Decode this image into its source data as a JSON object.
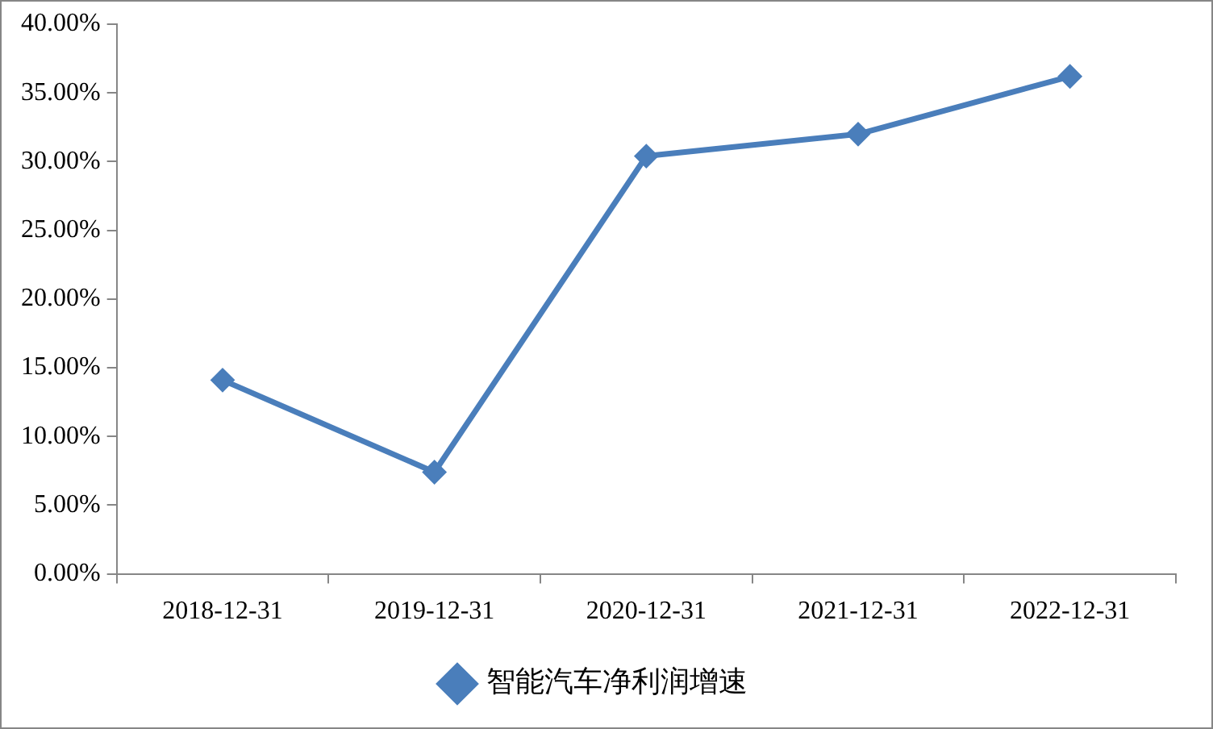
{
  "chart_data": {
    "type": "line",
    "categories": [
      "2018-12-31",
      "2019-12-31",
      "2020-12-31",
      "2021-12-31",
      "2022-12-31"
    ],
    "series": [
      {
        "name": "智能汽车净利润增速",
        "color": "#4a7ebb",
        "values": [
          14.1,
          7.4,
          30.4,
          32.0,
          36.2
        ]
      }
    ],
    "ylim": [
      0,
      40
    ],
    "yticks": [
      {
        "value": 0,
        "label": "0.00%"
      },
      {
        "value": 5,
        "label": "5.00%"
      },
      {
        "value": 10,
        "label": "10.00%"
      },
      {
        "value": 15,
        "label": "15.00%"
      },
      {
        "value": 20,
        "label": "20.00%"
      },
      {
        "value": 25,
        "label": "25.00%"
      },
      {
        "value": 30,
        "label": "30.00%"
      },
      {
        "value": 35,
        "label": "35.00%"
      },
      {
        "value": 40,
        "label": "40.00%"
      }
    ],
    "grid": false,
    "legend": "bottom",
    "marker": "diamond",
    "line_style": "solid"
  }
}
